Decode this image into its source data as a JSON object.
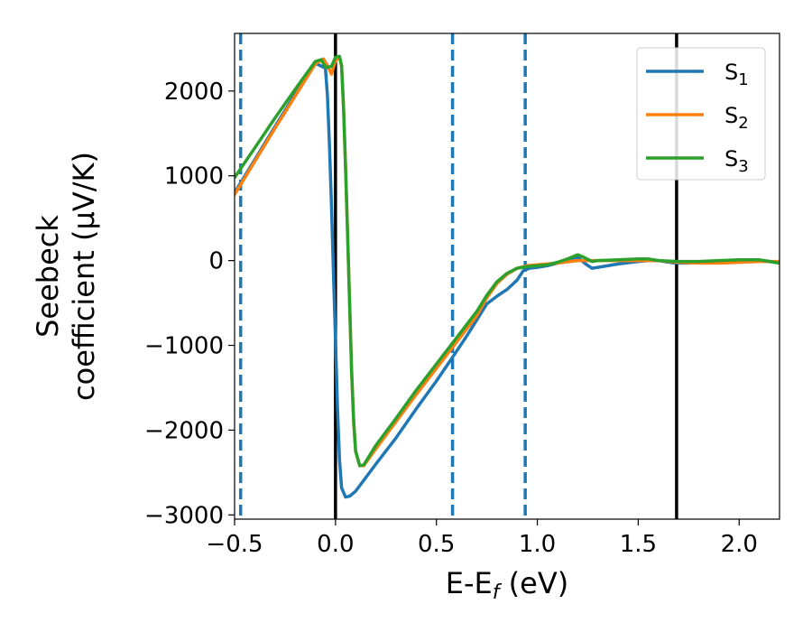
{
  "chart_data": {
    "type": "line",
    "xlabel": "E-E",
    "xlabel_sub": "f",
    "xlabel_unit": " (eV)",
    "ylabel_line1": "Seebeck",
    "ylabel_line2": "coefficient  (μV/K)",
    "xlim": [
      -0.5,
      2.2
    ],
    "ylim": [
      -3050,
      2680
    ],
    "x_ticks": [
      -0.5,
      0.0,
      0.5,
      1.0,
      1.5,
      2.0
    ],
    "x_tick_labels": [
      "−0.5",
      "0.0",
      "0.5",
      "1.0",
      "1.5",
      "2.0"
    ],
    "y_ticks": [
      -3000,
      -2000,
      -1000,
      0,
      1000,
      2000
    ],
    "y_tick_labels": [
      "−3000",
      "−2000",
      "−1000",
      "0",
      "1000",
      "2000"
    ],
    "grid": false,
    "legend_position": "top-right",
    "series": [
      {
        "name": "S",
        "name_sub": "1",
        "color": "#1f77b4",
        "points": [
          [
            -0.5,
            800
          ],
          [
            -0.48,
            880
          ],
          [
            -0.4,
            1190
          ],
          [
            -0.3,
            1580
          ],
          [
            -0.2,
            1960
          ],
          [
            -0.1,
            2330
          ],
          [
            -0.05,
            2270
          ],
          [
            -0.04,
            1950
          ],
          [
            -0.03,
            1380
          ],
          [
            -0.02,
            650
          ],
          [
            -0.01,
            -150
          ],
          [
            0.0,
            -950
          ],
          [
            0.01,
            -1750
          ],
          [
            0.02,
            -2350
          ],
          [
            0.03,
            -2680
          ],
          [
            0.05,
            -2790
          ],
          [
            0.07,
            -2780
          ],
          [
            0.1,
            -2720
          ],
          [
            0.2,
            -2400
          ],
          [
            0.3,
            -2090
          ],
          [
            0.4,
            -1750
          ],
          [
            0.5,
            -1420
          ],
          [
            0.58,
            -1140
          ],
          [
            0.65,
            -890
          ],
          [
            0.7,
            -700
          ],
          [
            0.75,
            -510
          ],
          [
            0.8,
            -420
          ],
          [
            0.85,
            -340
          ],
          [
            0.9,
            -230
          ],
          [
            0.93,
            -120
          ],
          [
            0.96,
            -90
          ],
          [
            1.0,
            -80
          ],
          [
            1.05,
            -60
          ],
          [
            1.1,
            -30
          ],
          [
            1.15,
            20
          ],
          [
            1.2,
            40
          ],
          [
            1.24,
            -40
          ],
          [
            1.27,
            -90
          ],
          [
            1.3,
            -80
          ],
          [
            1.4,
            -40
          ],
          [
            1.5,
            -10
          ],
          [
            1.55,
            0
          ],
          [
            1.6,
            0
          ],
          [
            1.68,
            -30
          ],
          [
            1.75,
            -30
          ],
          [
            1.8,
            -20
          ],
          [
            2.0,
            0
          ],
          [
            2.1,
            0
          ],
          [
            2.15,
            -10
          ],
          [
            2.2,
            -30
          ]
        ]
      },
      {
        "name": "S",
        "name_sub": "2",
        "color": "#ff7f0e",
        "points": [
          [
            -0.5,
            780
          ],
          [
            -0.4,
            1170
          ],
          [
            -0.3,
            1560
          ],
          [
            -0.2,
            1940
          ],
          [
            -0.1,
            2320
          ],
          [
            -0.06,
            2380
          ],
          [
            -0.04,
            2300
          ],
          [
            -0.02,
            2200
          ],
          [
            0.0,
            2360
          ],
          [
            0.02,
            2400
          ],
          [
            0.03,
            2300
          ],
          [
            0.04,
            1800
          ],
          [
            0.05,
            1100
          ],
          [
            0.06,
            300
          ],
          [
            0.07,
            -500
          ],
          [
            0.08,
            -1300
          ],
          [
            0.09,
            -1900
          ],
          [
            0.1,
            -2250
          ],
          [
            0.12,
            -2420
          ],
          [
            0.14,
            -2420
          ],
          [
            0.2,
            -2220
          ],
          [
            0.3,
            -1900
          ],
          [
            0.4,
            -1580
          ],
          [
            0.5,
            -1270
          ],
          [
            0.6,
            -960
          ],
          [
            0.7,
            -650
          ],
          [
            0.75,
            -440
          ],
          [
            0.8,
            -270
          ],
          [
            0.85,
            -160
          ],
          [
            0.9,
            -90
          ],
          [
            0.95,
            -60
          ],
          [
            1.0,
            -50
          ],
          [
            1.1,
            -30
          ],
          [
            1.2,
            0
          ],
          [
            1.3,
            0
          ],
          [
            1.4,
            0
          ],
          [
            1.5,
            0
          ],
          [
            1.6,
            0
          ],
          [
            1.7,
            -20
          ],
          [
            1.8,
            -30
          ],
          [
            1.9,
            -30
          ],
          [
            2.0,
            -20
          ],
          [
            2.1,
            -10
          ],
          [
            2.2,
            -10
          ]
        ]
      },
      {
        "name": "S",
        "name_sub": "3",
        "color": "#2ca02c",
        "points": [
          [
            -0.5,
            980
          ],
          [
            -0.4,
            1330
          ],
          [
            -0.3,
            1680
          ],
          [
            -0.2,
            2020
          ],
          [
            -0.1,
            2350
          ],
          [
            -0.07,
            2370
          ],
          [
            -0.05,
            2280
          ],
          [
            -0.02,
            2290
          ],
          [
            0.0,
            2400
          ],
          [
            0.02,
            2410
          ],
          [
            0.03,
            2300
          ],
          [
            0.04,
            1800
          ],
          [
            0.05,
            1100
          ],
          [
            0.06,
            300
          ],
          [
            0.07,
            -500
          ],
          [
            0.08,
            -1300
          ],
          [
            0.09,
            -1900
          ],
          [
            0.1,
            -2250
          ],
          [
            0.12,
            -2420
          ],
          [
            0.14,
            -2410
          ],
          [
            0.2,
            -2180
          ],
          [
            0.3,
            -1860
          ],
          [
            0.4,
            -1530
          ],
          [
            0.5,
            -1220
          ],
          [
            0.6,
            -910
          ],
          [
            0.7,
            -600
          ],
          [
            0.75,
            -410
          ],
          [
            0.8,
            -250
          ],
          [
            0.85,
            -150
          ],
          [
            0.9,
            -90
          ],
          [
            0.95,
            -70
          ],
          [
            1.0,
            -60
          ],
          [
            1.05,
            -50
          ],
          [
            1.1,
            -20
          ],
          [
            1.15,
            20
          ],
          [
            1.2,
            70
          ],
          [
            1.23,
            40
          ],
          [
            1.27,
            -10
          ],
          [
            1.3,
            0
          ],
          [
            1.4,
            10
          ],
          [
            1.5,
            20
          ],
          [
            1.55,
            20
          ],
          [
            1.6,
            0
          ],
          [
            1.7,
            -10
          ],
          [
            1.8,
            -10
          ],
          [
            1.9,
            0
          ],
          [
            2.0,
            10
          ],
          [
            2.1,
            10
          ],
          [
            2.15,
            -10
          ],
          [
            2.2,
            -30
          ]
        ]
      }
    ],
    "vlines": [
      {
        "x": -0.47,
        "style": "dashed",
        "color": "#1f77b4"
      },
      {
        "x": 0.0,
        "style": "solid",
        "color": "#000000"
      },
      {
        "x": 0.58,
        "style": "dashed",
        "color": "#1f77b4"
      },
      {
        "x": 0.94,
        "style": "dashed",
        "color": "#1f77b4"
      },
      {
        "x": 1.69,
        "style": "solid",
        "color": "#000000"
      }
    ]
  }
}
